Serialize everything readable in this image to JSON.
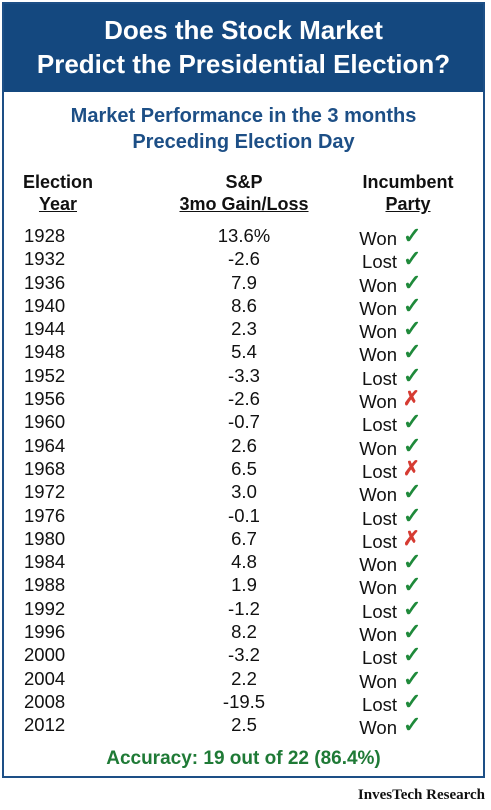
{
  "header": {
    "title_line1": "Does the Stock Market",
    "title_line2": "Predict the Presidential Election?"
  },
  "subtitle": {
    "line1": "Market Performance in the 3 months",
    "line2": "Preceding Election Day"
  },
  "columns": {
    "year_line1": "Election",
    "year_line2": "Year",
    "sp_line1": "S&P",
    "sp_line2": "3mo Gain/Loss",
    "party_line1": "Incumbent",
    "party_line2": "Party"
  },
  "colors": {
    "banner": "#14487f",
    "subtitle": "#1d4f86",
    "check": "#1f8a3b",
    "cross": "#d63b32",
    "accuracy": "#1f7a36"
  },
  "chart_data": {
    "type": "table",
    "title": "Does the Stock Market Predict the Presidential Election?",
    "subtitle": "Market Performance in the 3 months Preceding Election Day",
    "columns": [
      "Election Year",
      "S&P 3mo Gain/Loss",
      "Incumbent Party"
    ],
    "rows": [
      {
        "year": "1928",
        "value": "13.6%",
        "result": "Won",
        "correct": true
      },
      {
        "year": "1932",
        "value": "-2.6",
        "result": "Lost",
        "correct": true
      },
      {
        "year": "1936",
        "value": "7.9",
        "result": "Won",
        "correct": true
      },
      {
        "year": "1940",
        "value": "8.6",
        "result": "Won",
        "correct": true
      },
      {
        "year": "1944",
        "value": "2.3",
        "result": "Won",
        "correct": true
      },
      {
        "year": "1948",
        "value": "5.4",
        "result": "Won",
        "correct": true
      },
      {
        "year": "1952",
        "value": "-3.3",
        "result": "Lost",
        "correct": true
      },
      {
        "year": "1956",
        "value": "-2.6",
        "result": "Won",
        "correct": false
      },
      {
        "year": "1960",
        "value": "-0.7",
        "result": "Lost",
        "correct": true
      },
      {
        "year": "1964",
        "value": "2.6",
        "result": "Won",
        "correct": true
      },
      {
        "year": "1968",
        "value": "6.5",
        "result": "Lost",
        "correct": false
      },
      {
        "year": "1972",
        "value": "3.0",
        "result": "Won",
        "correct": true
      },
      {
        "year": "1976",
        "value": "-0.1",
        "result": "Lost",
        "correct": true
      },
      {
        "year": "1980",
        "value": "6.7",
        "result": "Lost",
        "correct": false
      },
      {
        "year": "1984",
        "value": "4.8",
        "result": "Won",
        "correct": true
      },
      {
        "year": "1988",
        "value": "1.9",
        "result": "Won",
        "correct": true
      },
      {
        "year": "1992",
        "value": "-1.2",
        "result": "Lost",
        "correct": true
      },
      {
        "year": "1996",
        "value": "8.2",
        "result": "Won",
        "correct": true
      },
      {
        "year": "2000",
        "value": "-3.2",
        "result": "Lost",
        "correct": true
      },
      {
        "year": "2004",
        "value": "2.2",
        "result": "Won",
        "correct": true
      },
      {
        "year": "2008",
        "value": "-19.5",
        "result": "Lost",
        "correct": true
      },
      {
        "year": "2012",
        "value": "2.5",
        "result": "Won",
        "correct": true
      }
    ],
    "accuracy": "Accuracy:  19 out of 22 (86.4%)"
  },
  "footer": {
    "source": "InvesTech Research"
  }
}
